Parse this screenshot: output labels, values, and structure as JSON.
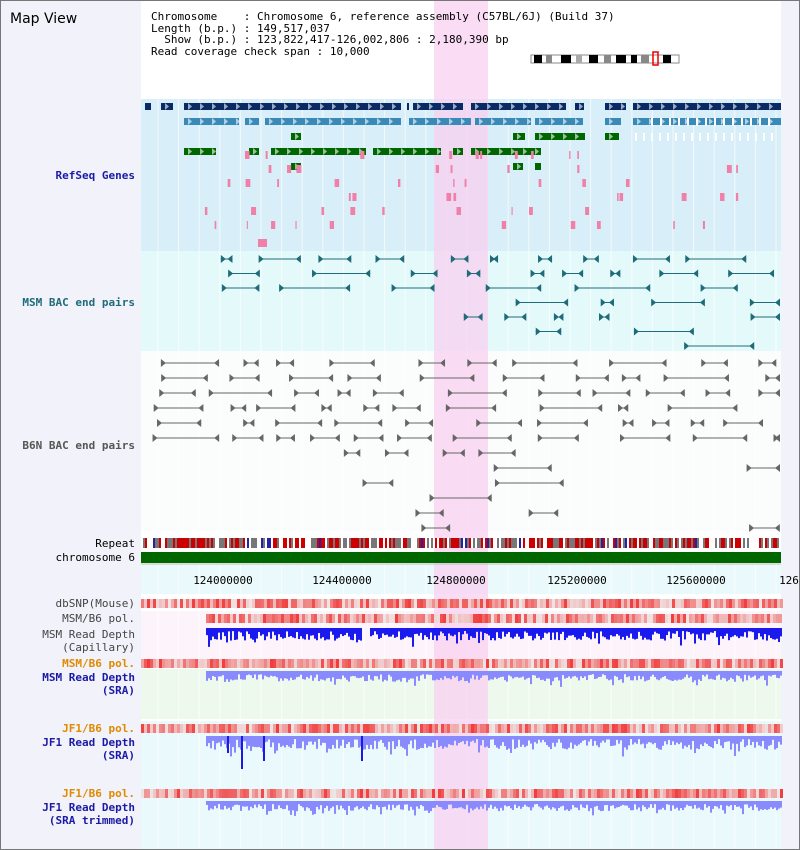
{
  "view_title": "Map View",
  "info": {
    "chromosome_label": "Chromosome",
    "chromosome_value": "Chromosome 6, reference assembly (C57BL/6J) (Build 37)",
    "length_label": "Length (b.p.)",
    "length_value": "149,517,037",
    "show_label": "Show (b.p.)",
    "show_value": "123,822,417-126,002,806 : 2,180,390 bp",
    "coverage_label": "Read coverage check span",
    "coverage_value": "10,000"
  },
  "tracks": {
    "refseq": "RefSeq Genes",
    "msm_bac": "MSM BAC end pairs",
    "b6n_bac": "B6N BAC end pairs",
    "repeat": "Repeat",
    "chromosome": "chromosome 6",
    "dbsnp": "dbSNP(Mouse)",
    "msm_b6_pol_1": "MSM/B6 pol.",
    "msm_depth_cap_1": "MSM Read Depth",
    "msm_depth_cap_2": "(Capillary)",
    "msm_b6_pol_2": "MSM/B6 pol.",
    "msm_depth_sra_1": "MSM Read Depth",
    "msm_depth_sra_2": "(SRA)",
    "jf1_b6_pol_1": "JF1/B6 pol.",
    "jf1_depth_sra_1": "JF1 Read Depth",
    "jf1_depth_sra_2": "(SRA)",
    "jf1_b6_pol_2": "JF1/B6 pol.",
    "jf1_depth_trim_1": "JF1 Read Depth",
    "jf1_depth_trim_2": "(SRA trimmed)"
  },
  "axis": {
    "ticks": [
      "124000000",
      "124400000",
      "124800000",
      "125200000",
      "125600000",
      "126"
    ]
  },
  "colors": {
    "refseq_bg": "#d8eef8",
    "bac_bg": "#e4fafa",
    "highlight": "#f8d0f0",
    "navy": "#0a2a66",
    "steel": "#3a8ab8",
    "green": "#006600",
    "pink": "#f080a8",
    "teal": "#1f6b7a",
    "gray": "#666666",
    "blue_depth": "#1a1aee",
    "light_blue_depth": "#8a8aff",
    "snp_red": "#ee4444"
  }
}
